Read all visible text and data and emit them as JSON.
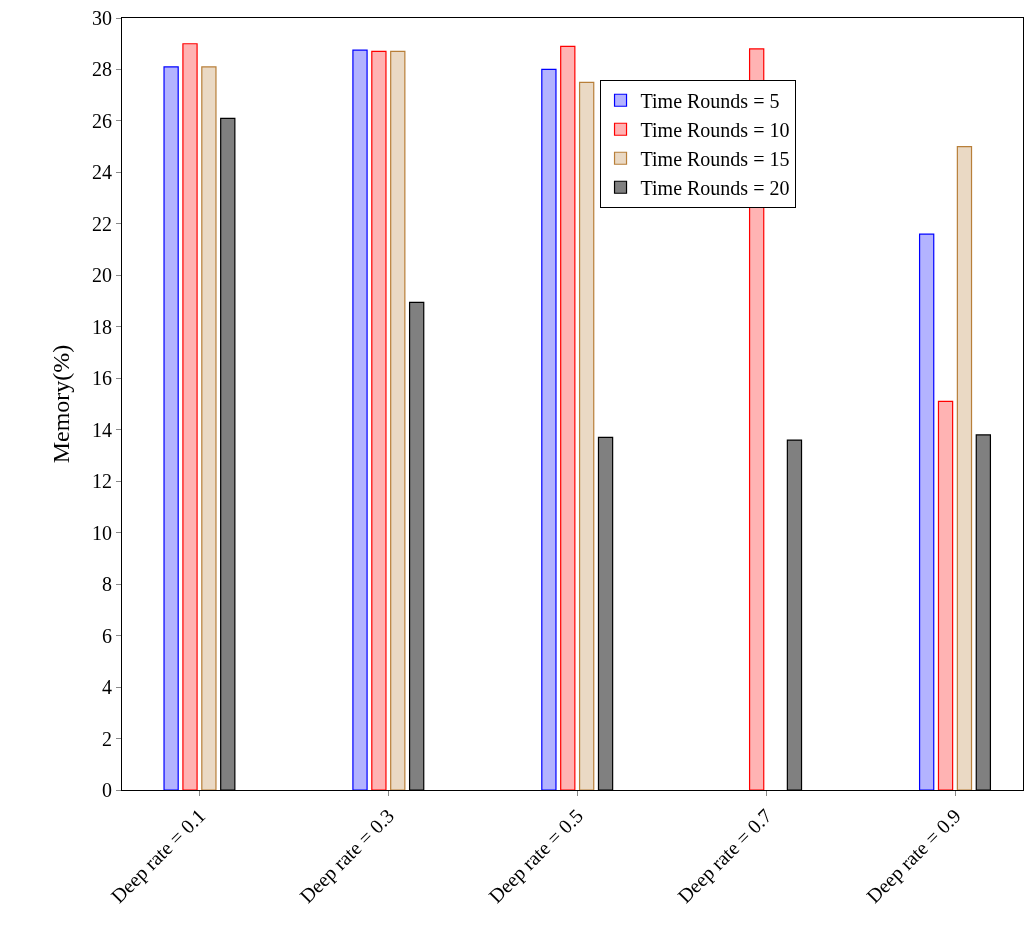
{
  "chart_data": {
    "type": "bar",
    "ylabel": "Memory(%)",
    "categories": [
      "Deep rate = 0.1",
      "Deep rate = 0.3",
      "Deep rate = 0.5",
      "Deep rate = 0.7",
      "Deep rate = 0.9"
    ],
    "series": [
      {
        "name": "Time Rounds = 5",
        "color": "#b3b3ff",
        "values": [
          28.1,
          28.75,
          28.0,
          null,
          21.6
        ]
      },
      {
        "name": "Time Rounds = 10",
        "color": "#ffb3b3",
        "values": [
          29.0,
          28.7,
          28.9,
          28.8,
          15.1
        ]
      },
      {
        "name": "Time Rounds = 15",
        "color": "#ead9c4",
        "values": [
          28.1,
          28.7,
          27.5,
          null,
          25.0
        ]
      },
      {
        "name": "Time Rounds = 20",
        "color": "#808080",
        "values": [
          26.1,
          18.95,
          13.7,
          13.6,
          13.8
        ]
      }
    ],
    "ylim": [
      0,
      30
    ],
    "yticks": [
      0,
      2,
      4,
      6,
      8,
      10,
      12,
      14,
      16,
      18,
      20,
      22,
      24,
      26,
      28,
      30
    ],
    "legend": "top right"
  }
}
